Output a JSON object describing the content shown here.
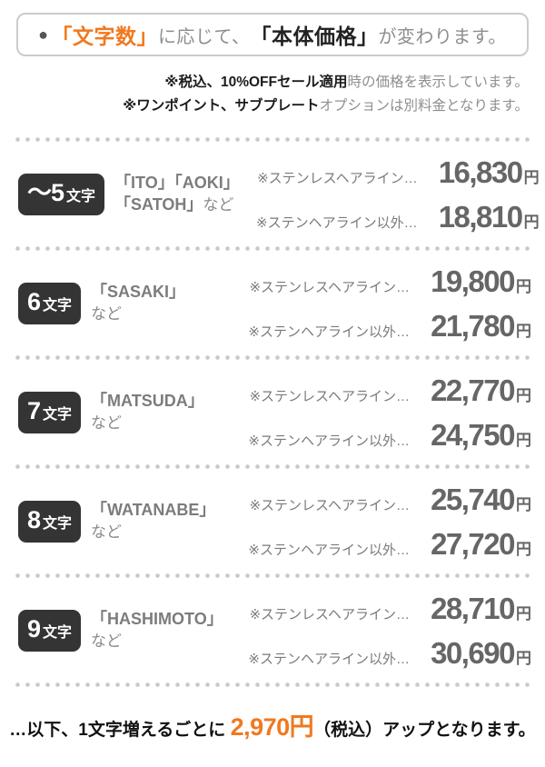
{
  "colors": {
    "accent_orange": "#f0791e",
    "badge_black": "#343434",
    "price_gray": "#666666",
    "label_gray": "#7a7a7a",
    "note_gray": "#8f8f8f",
    "dark_text": "#222222",
    "divider_dot": "#c9c9c9"
  },
  "header": {
    "bullet": "●",
    "emph_chars": "「文字数」",
    "connector": "に応じて、",
    "emph_price": "「本体価格」",
    "tail": "が変わります。"
  },
  "notes": [
    {
      "bold": "※税込、10%OFFセール適用",
      "rest": "時の価格を表示しています。"
    },
    {
      "bold": "※ワンポイント、サブプレート",
      "rest": "オプションは別料金となります。"
    }
  ],
  "rows": [
    {
      "badge_main": "～5",
      "badge_unit": "文字",
      "example_line1": "「ITO」「AOKI」",
      "example_line2_bold": "「SATOH」",
      "example_line2_rest": "など",
      "prices": [
        {
          "label": "※ステンレスヘアライン…",
          "value": "16,830",
          "unit": "円"
        },
        {
          "label": "※ステンヘアライン以外…",
          "value": "18,810",
          "unit": "円"
        }
      ]
    },
    {
      "badge_main": "6",
      "badge_unit": "文字",
      "example_line1": "「SASAKI」",
      "example_line2_bold": "",
      "example_line2_rest": "など",
      "prices": [
        {
          "label": "※ステンレスヘアライン…",
          "value": "19,800",
          "unit": "円"
        },
        {
          "label": "※ステンヘアライン以外…",
          "value": "21,780",
          "unit": "円"
        }
      ]
    },
    {
      "badge_main": "7",
      "badge_unit": "文字",
      "example_line1": "「MATSUDA」",
      "example_line2_bold": "",
      "example_line2_rest": "など",
      "prices": [
        {
          "label": "※ステンレスヘアライン…",
          "value": "22,770",
          "unit": "円"
        },
        {
          "label": "※ステンヘアライン以外…",
          "value": "24,750",
          "unit": "円"
        }
      ]
    },
    {
      "badge_main": "8",
      "badge_unit": "文字",
      "example_line1": "「WATANABE」",
      "example_line2_bold": "",
      "example_line2_rest": "など",
      "prices": [
        {
          "label": "※ステンレスヘアライン…",
          "value": "25,740",
          "unit": "円"
        },
        {
          "label": "※ステンヘアライン以外…",
          "value": "27,720",
          "unit": "円"
        }
      ]
    },
    {
      "badge_main": "9",
      "badge_unit": "文字",
      "example_line1": "「HASHIMOTO」",
      "example_line2_bold": "",
      "example_line2_rest": "など",
      "prices": [
        {
          "label": "※ステンレスヘアライン…",
          "value": "28,710",
          "unit": "円"
        },
        {
          "label": "※ステンヘアライン以外…",
          "value": "30,690",
          "unit": "円"
        }
      ]
    }
  ],
  "footer": {
    "lead": "…以下、1文字増えるごとに ",
    "emph": "2,970円",
    "tail": "（税込）アップとなります。"
  }
}
